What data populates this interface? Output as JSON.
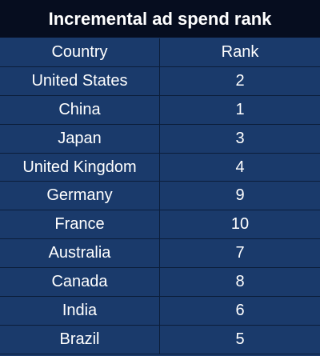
{
  "chart_data": {
    "type": "table",
    "title": "Incremental ad spend rank",
    "columns": [
      "Country",
      "Rank"
    ],
    "rows": [
      [
        "United States",
        "2"
      ],
      [
        "China",
        "1"
      ],
      [
        "Japan",
        "3"
      ],
      [
        "United Kingdom",
        "4"
      ],
      [
        "Germany",
        "9"
      ],
      [
        "France",
        "10"
      ],
      [
        "Australia",
        "7"
      ],
      [
        "Canada",
        "8"
      ],
      [
        "India",
        "6"
      ],
      [
        "Brazil",
        "5"
      ]
    ]
  },
  "colors": {
    "title_bg": "#060d1f",
    "cell_bg": "#1a3a6b",
    "text": "#ffffff"
  }
}
